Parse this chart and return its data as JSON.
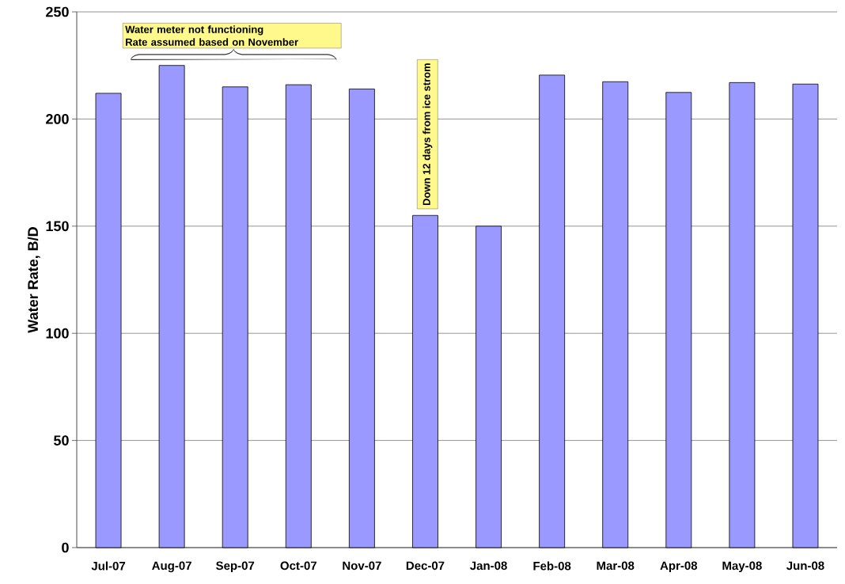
{
  "chart_data": {
    "type": "bar",
    "ylabel": "Water Rate, B/D",
    "categories": [
      "Jul-07",
      "Aug-07",
      "Sep-07",
      "Oct-07",
      "Nov-07",
      "Dec-07",
      "Jan-08",
      "Feb-08",
      "Mar-08",
      "Apr-08",
      "May-08",
      "Jun-08"
    ],
    "values": [
      212,
      225,
      215,
      216,
      214,
      155,
      150,
      220.5,
      217.4,
      212.4,
      217,
      216.3
    ],
    "color": "#9999ff",
    "ylim": [
      0,
      250
    ],
    "yticks": [
      0,
      50,
      100,
      150,
      200,
      250
    ],
    "grid": "y",
    "annotations": [
      "Water meter not functioning\nRate assumed based on November",
      "Down 12 days from ice strom"
    ]
  }
}
